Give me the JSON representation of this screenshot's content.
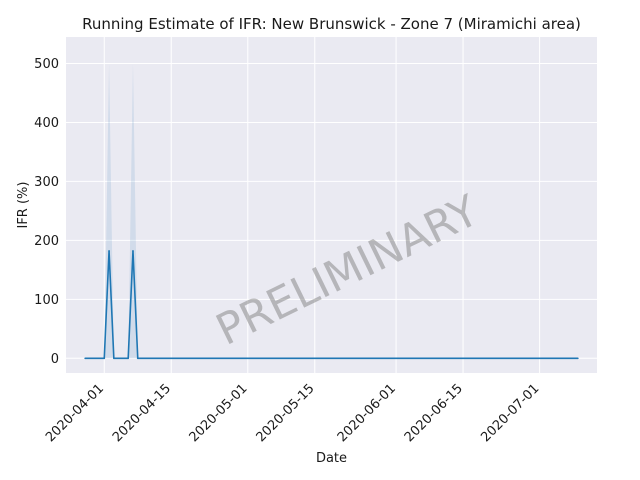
{
  "chart_data": {
    "type": "line",
    "title": "Running Estimate of IFR: New Brunswick - Zone 7 (Miramichi area)",
    "xlabel": "Date",
    "ylabel": "IFR (%)",
    "watermark": "PRELIMINARY",
    "x_range": [
      "2020-03-24",
      "2020-07-13"
    ],
    "ylim": [
      -25,
      545
    ],
    "grid": true,
    "background": "#eaeaf2",
    "line_color": "#1f77b4",
    "band_color": "#1f77b4",
    "x_ticks": [
      "2020-04-01",
      "2020-04-15",
      "2020-05-01",
      "2020-05-15",
      "2020-06-01",
      "2020-06-15",
      "2020-07-01"
    ],
    "y_ticks": [
      0,
      100,
      200,
      300,
      400,
      500
    ],
    "series": [
      {
        "points": [
          {
            "x": "2020-03-28",
            "y": 0,
            "lo": 0,
            "hi": 0
          },
          {
            "x": "2020-04-01",
            "y": 0,
            "lo": 0,
            "hi": 0
          },
          {
            "x": "2020-04-02",
            "y": 182,
            "lo": 0,
            "hi": 500
          },
          {
            "x": "2020-04-03",
            "y": 0,
            "lo": 0,
            "hi": 0
          },
          {
            "x": "2020-04-06",
            "y": 0,
            "lo": 0,
            "hi": 0
          },
          {
            "x": "2020-04-07",
            "y": 182,
            "lo": 0,
            "hi": 500
          },
          {
            "x": "2020-04-08",
            "y": 0,
            "lo": 0,
            "hi": 0
          },
          {
            "x": "2020-07-09",
            "y": 0,
            "lo": 0,
            "hi": 0
          }
        ]
      }
    ]
  }
}
